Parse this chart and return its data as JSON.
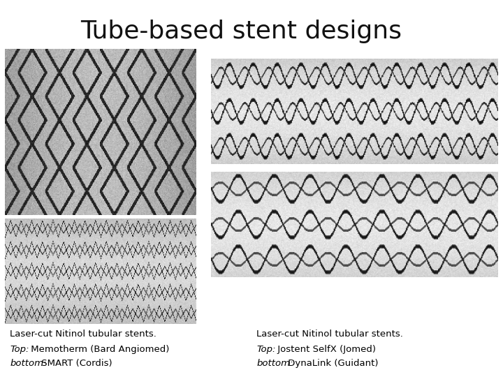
{
  "title": "Tube-based stent designs",
  "title_bg_color": "#C0514C",
  "title_text_color": "#111111",
  "slide_bg_color": "#ffffff",
  "caption_left_line1": "Laser-cut Nitinol tubular stents.",
  "caption_left_line2_italic": "Top:",
  "caption_left_line2_normal": " Memotherm (Bard Angiomed)",
  "caption_left_line3_italic": "bottom:",
  "caption_left_line3_normal": " SMART (Cordis)",
  "caption_right_line1": "Laser-cut Nitinol tubular stents.",
  "caption_right_line2_italic": "Top:",
  "caption_right_line2_normal": " Jostent SelfX (Jomed)",
  "caption_right_line3_italic": "bottom:",
  "caption_right_line3_normal": " DynaLink (Guidant)",
  "font_size_title": 26,
  "font_size_caption": 9.5
}
